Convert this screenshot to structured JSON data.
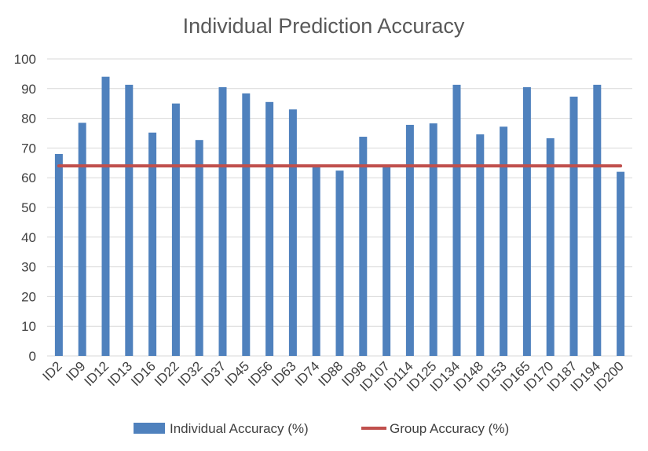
{
  "chart_data": {
    "type": "bar",
    "title": "Individual Prediction Accuracy",
    "xlabel": "",
    "ylabel": "",
    "ylim": [
      0,
      100
    ],
    "yticks": [
      "0",
      "10",
      "20",
      "30",
      "40",
      "50",
      "60",
      "70",
      "80",
      "90",
      "100"
    ],
    "grid": true,
    "legend_position": "bottom",
    "categories": [
      "ID2",
      "ID9",
      "ID12",
      "ID13",
      "ID16",
      "ID22",
      "ID32",
      "ID37",
      "ID45",
      "ID56",
      "ID63",
      "ID74",
      "ID88",
      "ID98",
      "ID107",
      "ID114",
      "ID125",
      "ID134",
      "ID148",
      "ID153",
      "ID165",
      "ID170",
      "ID187",
      "ID194",
      "ID200"
    ],
    "series": [
      {
        "name": "Individual Accuracy (%)",
        "type": "bar",
        "color": "#4f81bd",
        "values": [
          68,
          78.5,
          94,
          91.3,
          75.2,
          85,
          72.7,
          90.5,
          88.4,
          85.5,
          83,
          64,
          62.4,
          73.8,
          64,
          77.8,
          78.3,
          91.3,
          74.6,
          77.2,
          90.5,
          73.3,
          87.3,
          91.3,
          62
        ]
      },
      {
        "name": "Group Accuracy (%)",
        "type": "line",
        "color": "#c0504d",
        "values": [
          64,
          64,
          64,
          64,
          64,
          64,
          64,
          64,
          64,
          64,
          64,
          64,
          64,
          64,
          64,
          64,
          64,
          64,
          64,
          64,
          64,
          64,
          64,
          64,
          64
        ]
      }
    ]
  }
}
